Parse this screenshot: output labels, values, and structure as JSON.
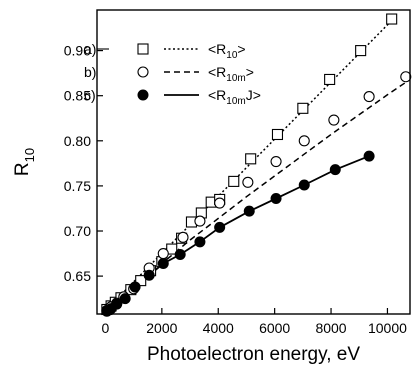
{
  "chart_data": {
    "type": "scatter",
    "xlabel": "Photoelectron energy, eV",
    "ylabel_main": "R",
    "ylabel_sub": "10",
    "xlim": [
      -300,
      10800
    ],
    "ylim": [
      0.608,
      0.945
    ],
    "xticks": [
      0,
      2000,
      4000,
      6000,
      8000,
      10000
    ],
    "yticks": [
      0.65,
      0.7,
      0.75,
      0.8,
      0.85,
      0.9
    ],
    "ytick_labels": [
      "0.65",
      "0.70",
      "0.75",
      "0.80",
      "0.85",
      "0.90"
    ],
    "grid": false,
    "legend": [
      {
        "tag": "a)",
        "marker": "open-square",
        "line": "dotted",
        "label_main": "<R",
        "label_sub": "10",
        "label_end": ">"
      },
      {
        "tag": "b)",
        "marker": "open-circle",
        "line": "dashed",
        "label_main": "<R",
        "label_sub": "10m",
        "label_end": ">"
      },
      {
        "tag": "c)",
        "marker": "filled-circle",
        "line": "solid",
        "label_main": "<R",
        "label_sub": "10m",
        "label_end": "J>"
      }
    ],
    "series": [
      {
        "key": "a",
        "marker": "open-square",
        "line": "dotted",
        "x": [
          50,
          200,
          350,
          550,
          900,
          1250,
          1600,
          2000,
          2350,
          2700,
          3050,
          3400,
          3750,
          4050,
          4550,
          5150,
          6100,
          7000,
          7950,
          9050,
          10150
        ],
        "y": [
          0.613,
          0.617,
          0.621,
          0.626,
          0.635,
          0.645,
          0.656,
          0.666,
          0.68,
          0.692,
          0.71,
          0.72,
          0.732,
          0.735,
          0.755,
          0.78,
          0.807,
          0.836,
          0.868,
          0.9,
          0.935
        ],
        "fit_x": [
          0,
          10300
        ],
        "fit_y": [
          0.612,
          0.938
        ]
      },
      {
        "key": "b",
        "marker": "open-circle",
        "line": "dashed",
        "x": [
          50,
          200,
          400,
          650,
          1000,
          1550,
          2050,
          2750,
          3350,
          4050,
          5050,
          6050,
          7050,
          8100,
          9350,
          10650
        ],
        "y": [
          0.612,
          0.616,
          0.62,
          0.627,
          0.636,
          0.659,
          0.675,
          0.693,
          0.711,
          0.731,
          0.754,
          0.777,
          0.8,
          0.823,
          0.849,
          0.871
        ],
        "fit_x": [
          0,
          1000,
          2000,
          3000,
          4000,
          5000,
          6000,
          7000,
          8000,
          9000,
          10000,
          10800
        ],
        "fit_y": [
          0.612,
          0.638,
          0.664,
          0.69,
          0.714,
          0.738,
          0.761,
          0.784,
          0.807,
          0.829,
          0.851,
          0.868
        ]
      },
      {
        "key": "c",
        "marker": "filled-circle",
        "line": "solid",
        "x": [
          50,
          200,
          400,
          700,
          1050,
          1550,
          2050,
          2650,
          3350,
          4050,
          5100,
          6050,
          7050,
          8150,
          9350
        ],
        "y": [
          0.611,
          0.614,
          0.619,
          0.625,
          0.638,
          0.651,
          0.664,
          0.674,
          0.688,
          0.704,
          0.722,
          0.736,
          0.751,
          0.768,
          0.783
        ]
      }
    ]
  }
}
